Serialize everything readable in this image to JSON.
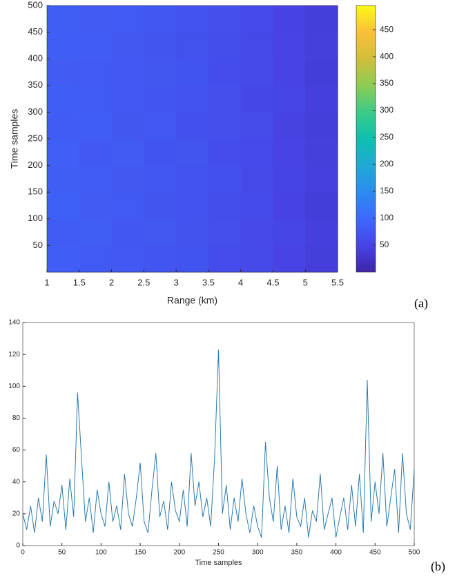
{
  "chart_data": [
    {
      "type": "heatmap",
      "panel_label": "(a)",
      "xlabel": "Range (km)",
      "ylabel": "Time samples",
      "xlim": [
        1,
        5.5
      ],
      "xticks": [
        1,
        1.5,
        2,
        2.5,
        3,
        3.5,
        4,
        4.5,
        5,
        5.5
      ],
      "ylim": [
        0,
        500
      ],
      "yticks": [
        50,
        100,
        150,
        200,
        250,
        300,
        350,
        400,
        450,
        500
      ],
      "clim": [
        0,
        495
      ],
      "cticks": [
        50,
        100,
        150,
        200,
        250,
        300,
        350,
        400,
        450
      ],
      "colormap": [
        "#3e26a8",
        "#4743e5",
        "#3d68fb",
        "#2b8cef",
        "#1fa9d5",
        "#10bfb0",
        "#3ccb88",
        "#8dcc55",
        "#d1bf3a",
        "#fbbf3a",
        "#f9fb15"
      ],
      "values": [
        [
          86,
          80,
          79,
          74,
          72,
          63,
          59,
          49,
          41
        ],
        [
          82,
          84,
          76,
          77,
          68,
          66,
          56,
          52,
          43
        ],
        [
          88,
          81,
          80,
          73,
          71,
          64,
          60,
          48,
          40
        ],
        [
          84,
          83,
          77,
          76,
          69,
          67,
          57,
          51,
          44
        ],
        [
          87,
          79,
          81,
          72,
          73,
          62,
          58,
          50,
          42
        ],
        [
          83,
          85,
          75,
          78,
          67,
          65,
          61,
          47,
          41
        ],
        [
          85,
          82,
          78,
          74,
          70,
          66,
          55,
          53,
          43
        ],
        [
          81,
          80,
          79,
          75,
          72,
          63,
          59,
          49,
          40
        ],
        [
          86,
          83,
          77,
          73,
          68,
          64,
          57,
          50,
          42
        ],
        [
          84,
          81,
          80,
          76,
          71,
          65,
          58,
          48,
          41
        ]
      ]
    },
    {
      "type": "line",
      "panel_label": "(b)",
      "xlabel": "Time samples",
      "color": "#2a7ab0",
      "xlim": [
        0,
        500
      ],
      "xticks": [
        0,
        50,
        100,
        150,
        200,
        250,
        300,
        350,
        400,
        450,
        500
      ],
      "ylim": [
        0,
        140
      ],
      "yticks": [
        0,
        20,
        40,
        60,
        80,
        100,
        120,
        140
      ],
      "x": [
        0,
        5,
        10,
        15,
        20,
        25,
        30,
        35,
        40,
        45,
        50,
        55,
        60,
        65,
        70,
        75,
        80,
        85,
        90,
        95,
        100,
        105,
        110,
        115,
        120,
        125,
        130,
        135,
        140,
        145,
        150,
        155,
        160,
        165,
        170,
        175,
        180,
        185,
        190,
        195,
        200,
        205,
        210,
        215,
        220,
        225,
        230,
        235,
        240,
        245,
        250,
        255,
        260,
        265,
        270,
        275,
        280,
        285,
        290,
        295,
        300,
        305,
        310,
        315,
        320,
        325,
        330,
        335,
        340,
        345,
        350,
        355,
        360,
        365,
        370,
        375,
        380,
        385,
        390,
        395,
        400,
        405,
        410,
        415,
        420,
        425,
        430,
        435,
        440,
        445,
        450,
        455,
        460,
        465,
        470,
        475,
        480,
        485,
        490,
        495,
        500
      ],
      "values": [
        20,
        10,
        25,
        8,
        30,
        15,
        57,
        12,
        28,
        20,
        38,
        10,
        42,
        18,
        96,
        55,
        15,
        30,
        8,
        35,
        20,
        12,
        40,
        15,
        25,
        10,
        45,
        20,
        12,
        30,
        52,
        15,
        8,
        35,
        58,
        18,
        28,
        10,
        40,
        22,
        15,
        35,
        12,
        58,
        25,
        40,
        18,
        30,
        12,
        55,
        123,
        20,
        38,
        10,
        30,
        15,
        42,
        20,
        8,
        25,
        12,
        5,
        65,
        30,
        15,
        50,
        10,
        25,
        8,
        42,
        18,
        12,
        30,
        5,
        22,
        15,
        45,
        10,
        20,
        30,
        5,
        18,
        30,
        10,
        38,
        12,
        45,
        8,
        104,
        15,
        40,
        20,
        58,
        12,
        30,
        48,
        8,
        58,
        20,
        10,
        48
      ]
    }
  ]
}
